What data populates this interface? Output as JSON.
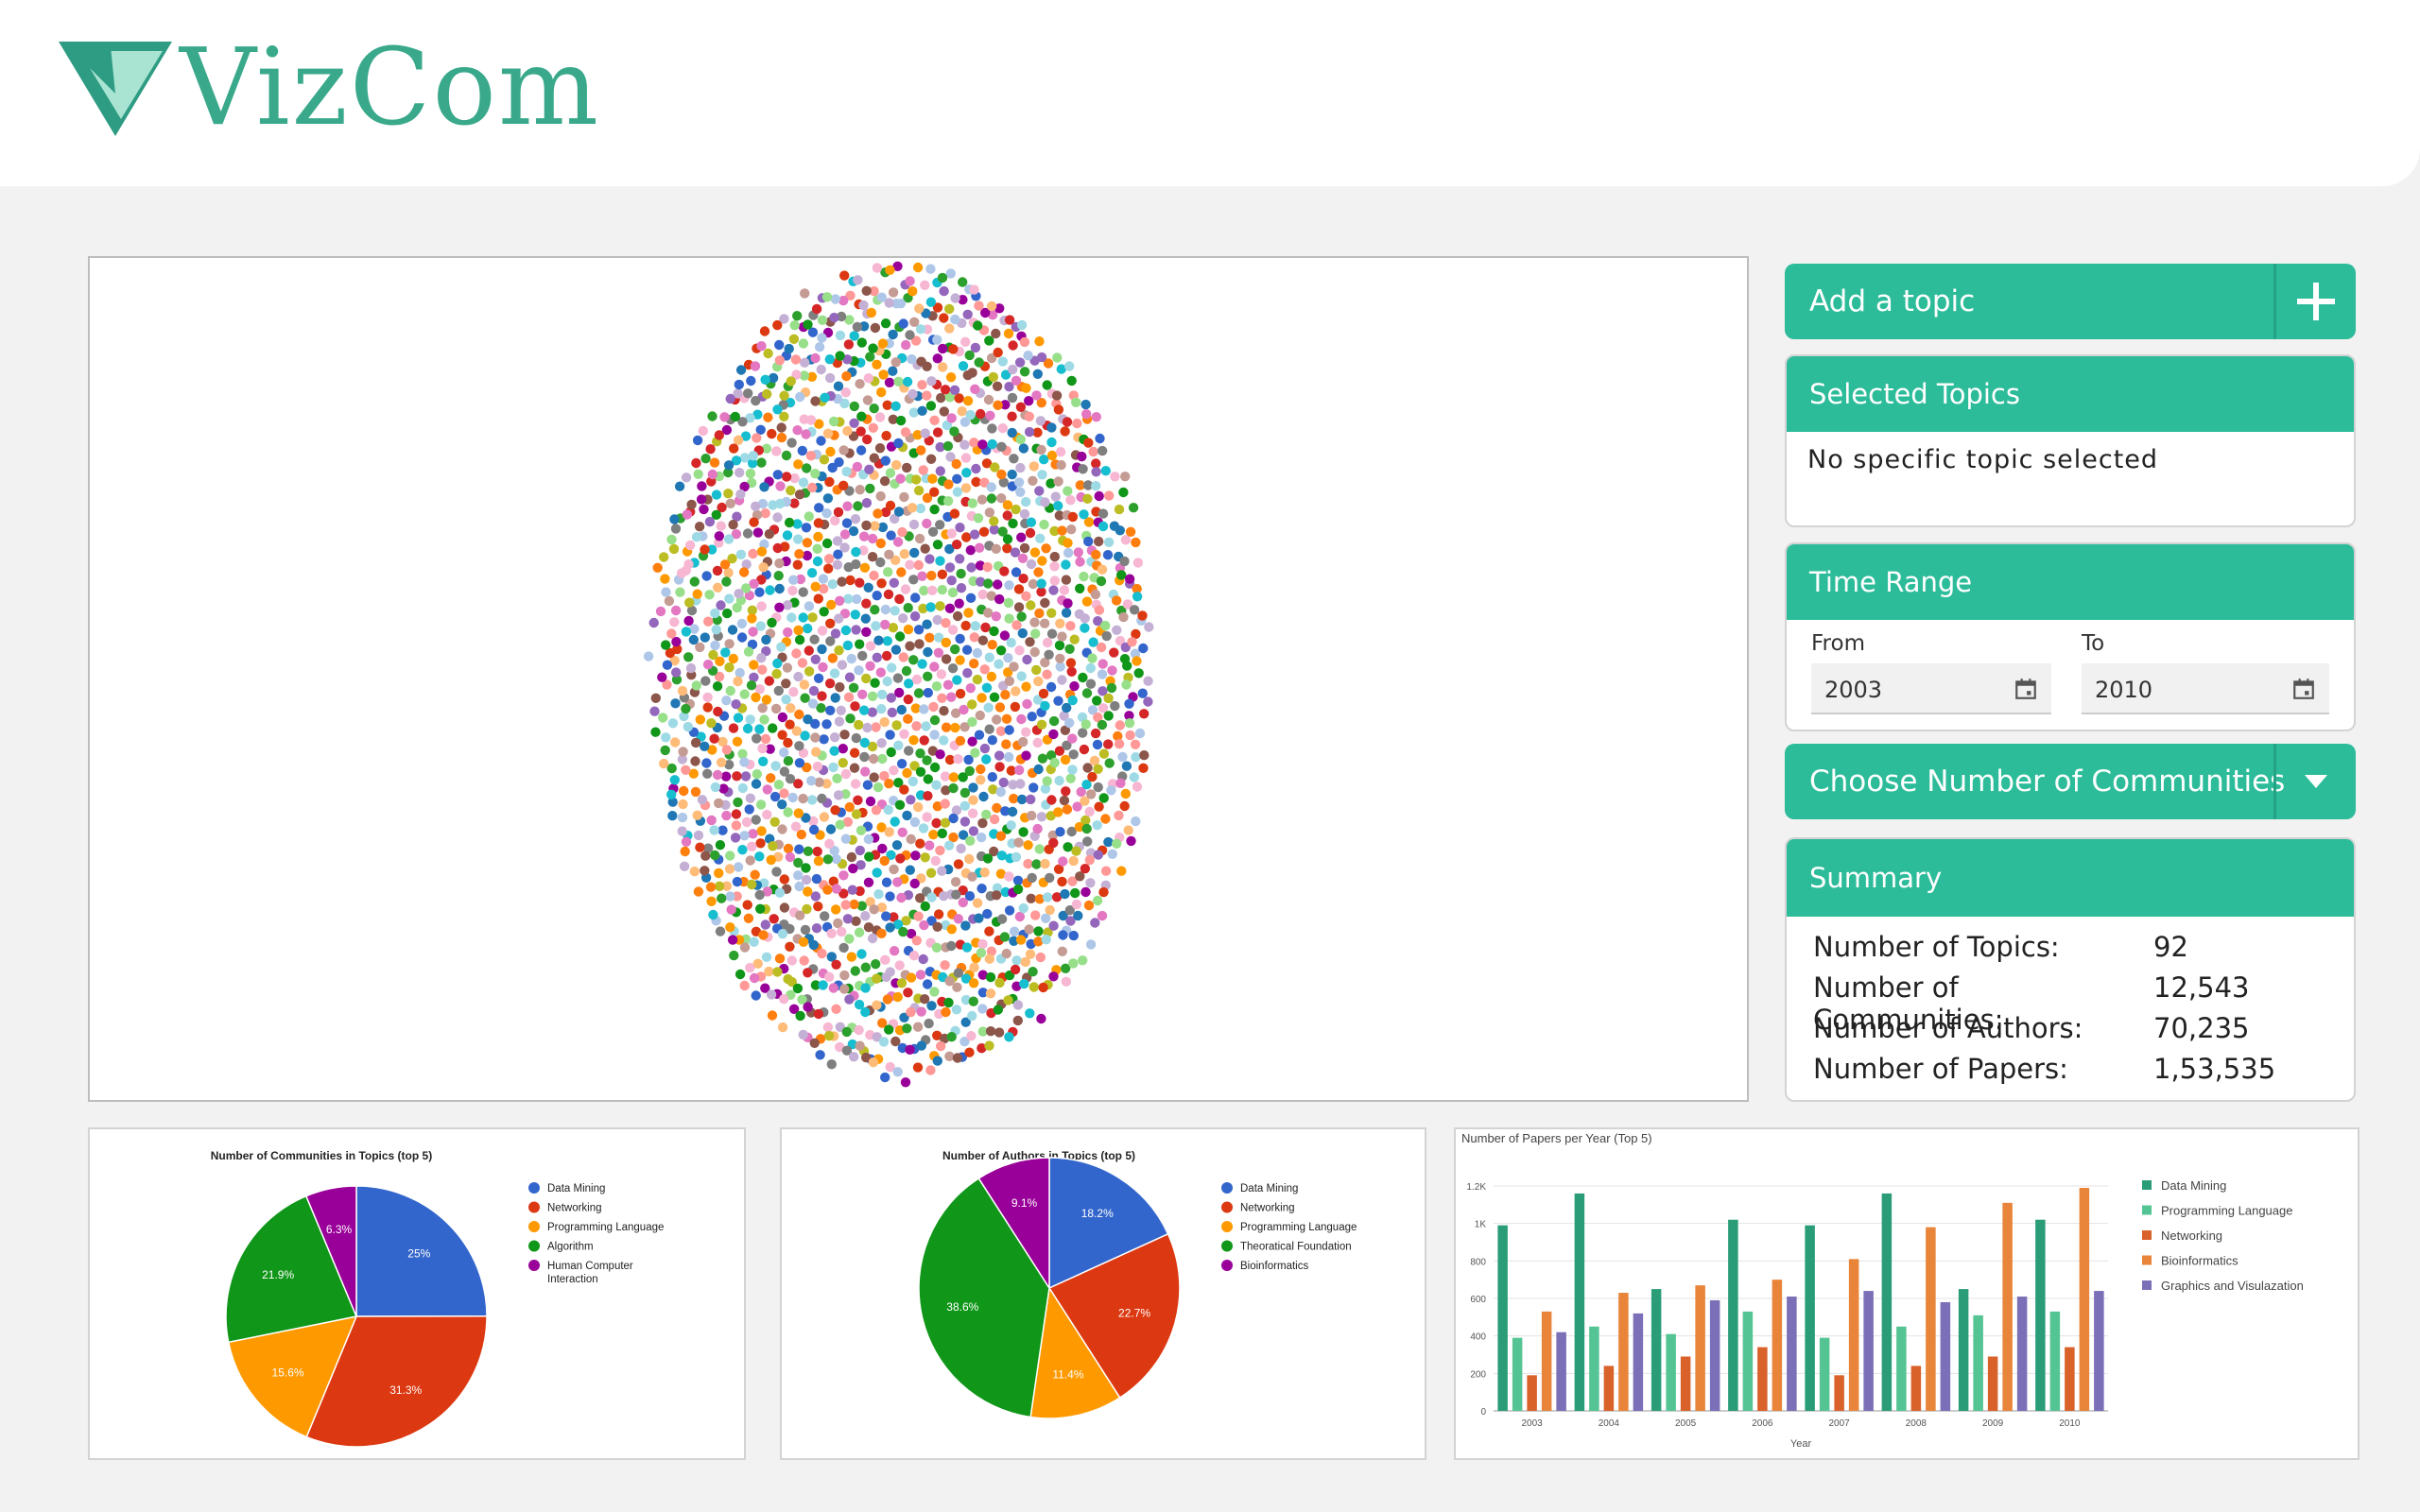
{
  "header": {
    "brand": "VizCom",
    "logo_icon": "vizcom-logo-icon"
  },
  "graph": {
    "colors": [
      "#3366cc",
      "#dc3912",
      "#ff9900",
      "#109618",
      "#990099",
      "#1f77b4",
      "#ff7f0e",
      "#2ca02c",
      "#d62728",
      "#9467bd",
      "#8c564b",
      "#e377c2",
      "#aec7e8",
      "#ffbb78",
      "#98df8a",
      "#ff9896",
      "#c5b0d5",
      "#c49c94",
      "#f7b6d2",
      "#9edae5",
      "#17becf",
      "#bcbd22",
      "#7f7f7f"
    ]
  },
  "add_topic": {
    "label": "Add a topic",
    "icon": "plus-icon"
  },
  "selected_topics": {
    "title": "Selected Topics",
    "empty_text": "No specific topic selected"
  },
  "time_range": {
    "title": "Time Range",
    "from_label": "From",
    "from_value": "2003",
    "to_label": "To",
    "to_value": "2010",
    "icon": "calendar-icon"
  },
  "communities": {
    "label": "Choose Number of Communities",
    "icon": "dropdown-arrow-icon"
  },
  "summary": {
    "title": "Summary",
    "rows": [
      {
        "label": "Number of Topics:",
        "value": "92"
      },
      {
        "label": "Number of Communities:",
        "value": "12,543"
      },
      {
        "label": "Number of Authors:",
        "value": "70,235"
      },
      {
        "label": "Number of Papers:",
        "value": "1,53,535"
      }
    ]
  },
  "accent": "#2dbc9a",
  "chart_data": [
    {
      "type": "pie",
      "title": "Number of Communities in Topics (top 5)",
      "slices": [
        {
          "name": "Data Mining",
          "value": 25,
          "label": "25%",
          "color": "#3366cc"
        },
        {
          "name": "Networking",
          "value": 31.3,
          "label": "31.3%",
          "color": "#dc3912"
        },
        {
          "name": "Programming Language",
          "value": 15.6,
          "label": "15.6%",
          "color": "#ff9900"
        },
        {
          "name": "Algorithm",
          "value": 21.9,
          "label": "21.9%",
          "color": "#109618"
        },
        {
          "name": "Human Computer Interaction",
          "value": 6.3,
          "label": "6.3%",
          "color": "#990099"
        }
      ],
      "legend": "right"
    },
    {
      "type": "pie",
      "title": "Number of Authors in Topics (top 5)",
      "slices": [
        {
          "name": "Data Mining",
          "value": 18.2,
          "label": "18.2%",
          "color": "#3366cc"
        },
        {
          "name": "Networking",
          "value": 22.7,
          "label": "22.7%",
          "color": "#dc3912"
        },
        {
          "name": "Programming Language",
          "value": 11.4,
          "label": "11.4%",
          "color": "#ff9900"
        },
        {
          "name": "Theoratical Foundation",
          "value": 38.6,
          "label": "38.6%",
          "color": "#109618"
        },
        {
          "name": "Bioinformatics",
          "value": 9.1,
          "label": "9.1%",
          "color": "#990099"
        }
      ],
      "legend": "right"
    },
    {
      "type": "bar",
      "title": "Number of Papers per Year (Top 5)",
      "xlabel": "Year",
      "ylabel": "",
      "categories": [
        "2003",
        "2004",
        "2005",
        "2006",
        "2007",
        "2008",
        "2009",
        "2010"
      ],
      "ylim": [
        0,
        1200
      ],
      "yticks": [
        "0",
        "200",
        "400",
        "600",
        "800",
        "1K",
        "1.2K"
      ],
      "ytick_values": [
        0,
        200,
        400,
        600,
        800,
        1000,
        1200
      ],
      "series": [
        {
          "name": "Data Mining",
          "color": "#2a9d78",
          "values": [
            990,
            1160,
            650,
            1020,
            990,
            1160,
            650,
            1020
          ]
        },
        {
          "name": "Programming Language",
          "color": "#55c494",
          "values": [
            390,
            450,
            410,
            530,
            390,
            450,
            510,
            530
          ]
        },
        {
          "name": "Networking",
          "color": "#d9622b",
          "values": [
            190,
            240,
            290,
            340,
            190,
            240,
            290,
            340
          ]
        },
        {
          "name": "Bioinformatics",
          "color": "#e8853a",
          "values": [
            530,
            630,
            670,
            700,
            810,
            980,
            1110,
            1190
          ]
        },
        {
          "name": "Graphics and Visulazation",
          "color": "#7b6fb8",
          "values": [
            420,
            520,
            590,
            610,
            640,
            580,
            610,
            640
          ]
        }
      ],
      "grid": true,
      "legend": "right"
    }
  ]
}
